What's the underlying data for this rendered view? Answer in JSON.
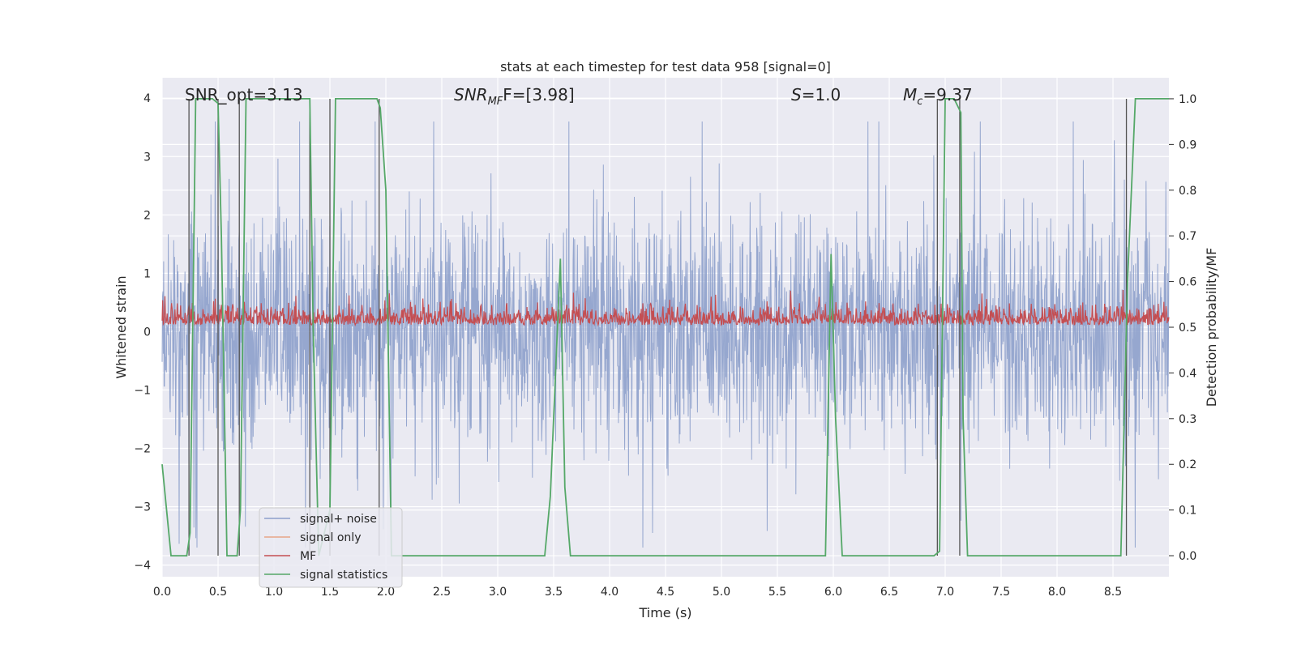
{
  "chart_data": {
    "type": "line",
    "title": "stats at each timestep for test data 958 [signal=0]",
    "xlabel": "Time (s)",
    "ylabel": "Whitened strain",
    "y2label": "Detection probability/MF",
    "xlim": [
      0.0,
      9.0
    ],
    "ylim": [
      -4.2,
      4.35
    ],
    "y2lim": [
      -0.046,
      1.046
    ],
    "xticks": [
      "0.0",
      "0.5",
      "1.0",
      "1.5",
      "2.0",
      "2.5",
      "3.0",
      "3.5",
      "4.0",
      "4.5",
      "5.0",
      "5.5",
      "6.0",
      "6.5",
      "7.0",
      "7.5",
      "8.0",
      "8.5"
    ],
    "yticks": [
      "4",
      "3",
      "2",
      "1",
      "0",
      "−1",
      "−2",
      "−3",
      "−4"
    ],
    "y2ticks": [
      "1.0",
      "0.9",
      "0.8",
      "0.7",
      "0.6",
      "0.5",
      "0.4",
      "0.3",
      "0.2",
      "0.1",
      "0.0"
    ],
    "annotations": [
      {
        "text": "SNR_opt=3.13"
      },
      {
        "text": "SNR",
        "sub": "MF",
        "suffix": "F=[3.98]"
      },
      {
        "text": "S",
        "suffix": "=1.0"
      },
      {
        "text": "M",
        "sub": "c",
        "suffix": "=9.37"
      }
    ],
    "legend": {
      "position": "lower-left",
      "entries": [
        {
          "label": "signal+ noise",
          "color": "#8da0cb"
        },
        {
          "label": "signal only",
          "color": "#e8a587"
        },
        {
          "label": "MF",
          "color": "#c44e52"
        },
        {
          "label": "signal statistics",
          "color": "#55a868"
        }
      ]
    },
    "series": [
      {
        "name": "signal+ noise",
        "axis": "left",
        "description": "whitened noise, amplitude roughly between -3.7 and 3.6"
      },
      {
        "name": "signal only",
        "axis": "left",
        "values": []
      },
      {
        "name": "MF",
        "axis": "right",
        "description": "matched filter output, roughly 0.5 to 0.6"
      },
      {
        "name": "signal statistics",
        "axis": "right",
        "x": [
          0.0,
          0.08,
          0.22,
          0.25,
          0.3,
          0.45,
          0.5,
          0.53,
          0.58,
          0.67,
          0.7,
          0.75,
          1.32,
          1.35,
          1.4,
          1.5,
          1.55,
          1.92,
          1.95,
          2.0,
          2.05,
          3.42,
          3.47,
          3.56,
          3.6,
          3.65,
          5.93,
          5.98,
          6.02,
          6.08,
          6.9,
          6.95,
          7.0,
          7.08,
          7.14,
          7.16,
          7.2,
          8.57,
          8.63,
          8.7,
          9.0
        ],
        "values": [
          0.2,
          0.0,
          0.0,
          0.05,
          1.0,
          1.0,
          0.99,
          0.7,
          0.0,
          0.0,
          0.1,
          1.0,
          1.0,
          0.5,
          0.0,
          0.1,
          1.0,
          1.0,
          0.98,
          0.8,
          0.0,
          0.0,
          0.13,
          0.65,
          0.15,
          0.0,
          0.0,
          0.66,
          0.3,
          0.0,
          0.0,
          0.01,
          1.0,
          1.0,
          0.97,
          0.3,
          0.0,
          0.0,
          0.6,
          1.0,
          1.0
        ]
      }
    ],
    "event_markers_x": [
      0.24,
      0.5,
      0.69,
      1.32,
      1.5,
      1.94,
      6.93,
      7.13,
      8.62
    ],
    "colors": {
      "background": "#eaeaf2",
      "grid": "#ffffff",
      "noise": "#8da0cb",
      "mf": "#c44e52",
      "stat": "#55a868",
      "marker": "#555555"
    }
  }
}
